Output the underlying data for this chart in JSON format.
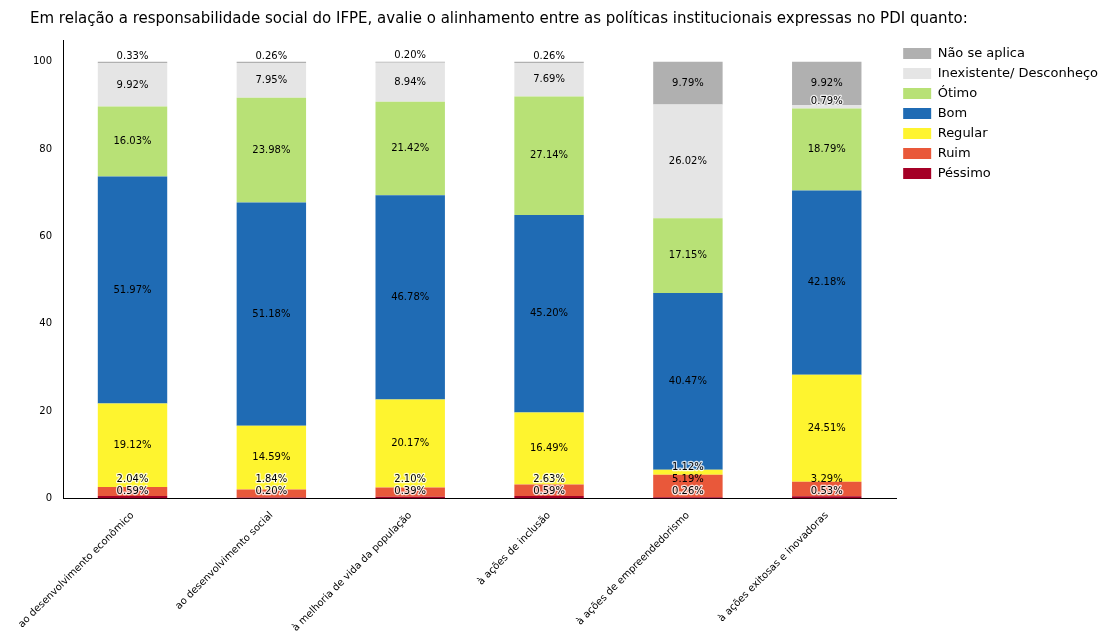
{
  "chart_data": {
    "type": "bar",
    "title": "Em relação a responsabilidade social do IFPE, avalie o alinhamento entre as políticas institucionais expressas no PDI quanto:",
    "categories": [
      "ao desenvolvimento econômico",
      "ao desenvolvimento social",
      "à melhoria de vida da população",
      "à ações de inclusão",
      "à ações de empreendedorismo",
      "à ações exitosas e inovadoras"
    ],
    "stacked": true,
    "ylim": [
      0,
      105
    ],
    "yticks": [
      0,
      20,
      40,
      60,
      80,
      100
    ],
    "grid": false,
    "legend": "top right",
    "series": [
      {
        "name": "Péssimo",
        "color": "#a50026",
        "values": [
          0.59,
          0.2,
          0.39,
          0.59,
          0.26,
          0.53
        ],
        "value_labels": [
          "0.59%",
          "0.20%",
          "0.39%",
          "0.59%",
          "0.26%",
          "0.53%"
        ]
      },
      {
        "name": "Ruim",
        "color": "#e9583a",
        "values": [
          2.04,
          1.84,
          2.1,
          2.63,
          5.19,
          3.29
        ],
        "value_labels": [
          "2.04%",
          "1.84%",
          "2.10%",
          "2.63%",
          "5.19%",
          "3.29%"
        ]
      },
      {
        "name": "Regular",
        "color": "#fef42f",
        "values": [
          19.12,
          14.59,
          20.17,
          16.49,
          1.12,
          24.51
        ],
        "value_labels": [
          "19.12%",
          "14.59%",
          "20.17%",
          "16.49%",
          "1.12%",
          "24.51%"
        ]
      },
      {
        "name": "Bom",
        "color": "#1f6bb4",
        "values": [
          51.97,
          51.18,
          46.78,
          45.2,
          40.47,
          42.18
        ],
        "value_labels": [
          "51.97%",
          "51.18%",
          "46.78%",
          "45.20%",
          "40.47%",
          "42.18%"
        ]
      },
      {
        "name": "Ótimo",
        "color": "#b8e176",
        "values": [
          16.03,
          23.98,
          21.42,
          27.14,
          17.15,
          18.79
        ],
        "value_labels": [
          "16.03%",
          "23.98%",
          "21.42%",
          "27.14%",
          "17.15%",
          "18.79%"
        ]
      },
      {
        "name": "Inexistente/ Desconheço",
        "color": "#e5e5e5",
        "values": [
          9.92,
          7.95,
          8.94,
          7.69,
          26.02,
          0.79
        ],
        "value_labels": [
          "9.92%",
          "7.95%",
          "8.94%",
          "7.69%",
          "26.02%",
          "0.79%"
        ]
      },
      {
        "name": "Não se aplica",
        "color": "#b0b0b0",
        "values": [
          0.33,
          0.26,
          0.2,
          0.26,
          9.79,
          9.92
        ],
        "value_labels": [
          "0.33%",
          "0.26%",
          "0.20%",
          "0.26%",
          "9.79%",
          "9.92%"
        ]
      }
    ]
  }
}
